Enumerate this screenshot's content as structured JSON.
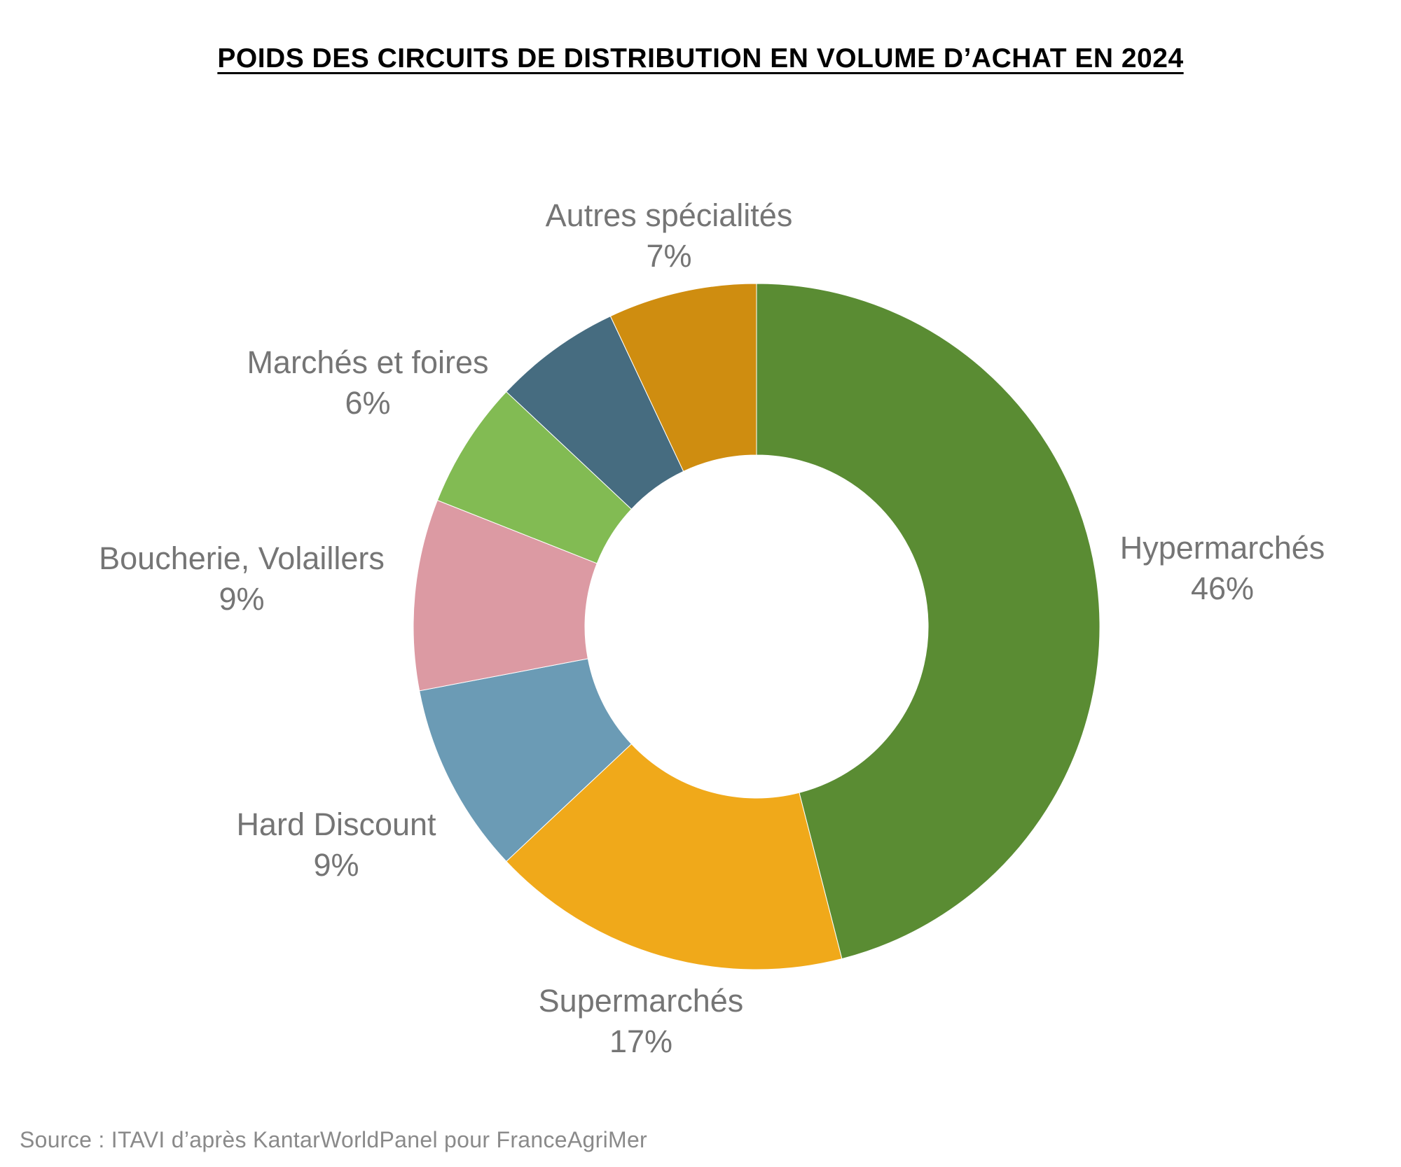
{
  "chart_data": {
    "type": "pie",
    "subtype": "donut",
    "title": "POIDS DES CIRCUITS DE DISTRIBUTION EN VOLUME D’ACHAT EN 2024",
    "start_angle_deg": 0,
    "direction": "clockwise",
    "slices": [
      {
        "label": "Hypermarchés",
        "value": 46,
        "value_label": "46%",
        "color": "#5a8c33"
      },
      {
        "label": "Supermarchés",
        "value": 17,
        "value_label": "17%",
        "color": "#f0a91a"
      },
      {
        "label": "Hard Discount",
        "value": 9,
        "value_label": "9%",
        "color": "#6b9bb5"
      },
      {
        "label": "Boucherie, Volaillers",
        "value": 9,
        "value_label": "9%",
        "color": "#dc9aa3"
      },
      {
        "label": "",
        "value": 6,
        "value_label": "",
        "color": "#82bb53"
      },
      {
        "label": "Marchés et foires",
        "value": 6,
        "value_label": "6%",
        "color": "#466c80"
      },
      {
        "label": "Autres spécialités",
        "value": 7,
        "value_label": "7%",
        "color": "#cf8d10"
      }
    ]
  },
  "source": "Source : ITAVI d’après KantarWorldPanel pour FranceAgriMer"
}
